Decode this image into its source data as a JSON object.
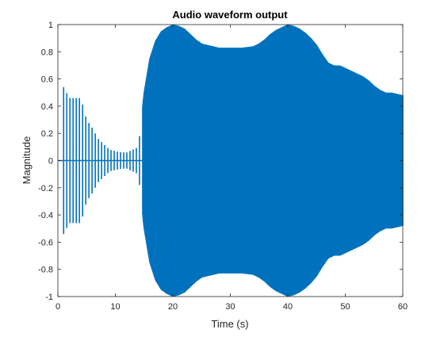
{
  "chart_data": {
    "type": "line",
    "title": "Audio waveform output",
    "xlabel": "Time (s)",
    "ylabel": "Magnitude",
    "xlim": [
      0,
      60
    ],
    "ylim": [
      -1,
      1
    ],
    "xticks": [
      0,
      10,
      20,
      30,
      40,
      50,
      60
    ],
    "yticks": [
      -1,
      -0.8,
      -0.6,
      -0.4,
      -0.2,
      0,
      0.2,
      0.4,
      0.6,
      0.8,
      1
    ],
    "grid": false,
    "legend": "none",
    "line_color": "#0072BD",
    "series": [
      {
        "envelope_time": [
          0,
          1,
          2,
          4,
          5,
          6,
          7,
          8,
          9,
          10,
          11,
          12,
          13,
          14,
          14.5,
          15,
          16,
          17,
          18,
          19,
          20,
          21,
          22,
          23,
          24,
          25,
          26,
          27,
          28,
          30,
          32,
          34,
          35,
          36,
          37,
          38,
          39,
          40,
          41,
          42,
          43,
          44,
          45,
          46,
          47,
          48,
          49,
          50,
          51,
          52,
          53,
          54,
          55,
          56,
          57,
          58,
          59,
          60
        ],
        "envelope_amplitude": [
          0,
          0.54,
          0.46,
          0.46,
          0.3,
          0.24,
          0.16,
          0.12,
          0.08,
          0.07,
          0.06,
          0.06,
          0.08,
          0.1,
          0.3,
          0.5,
          0.75,
          0.88,
          0.95,
          0.98,
          1.0,
          0.99,
          0.97,
          0.93,
          0.89,
          0.86,
          0.85,
          0.84,
          0.83,
          0.83,
          0.83,
          0.84,
          0.86,
          0.89,
          0.93,
          0.96,
          0.98,
          1.0,
          0.99,
          0.97,
          0.94,
          0.9,
          0.85,
          0.78,
          0.72,
          0.7,
          0.7,
          0.68,
          0.66,
          0.64,
          0.62,
          0.59,
          0.55,
          0.52,
          0.5,
          0.5,
          0.49,
          0.48
        ]
      }
    ]
  }
}
